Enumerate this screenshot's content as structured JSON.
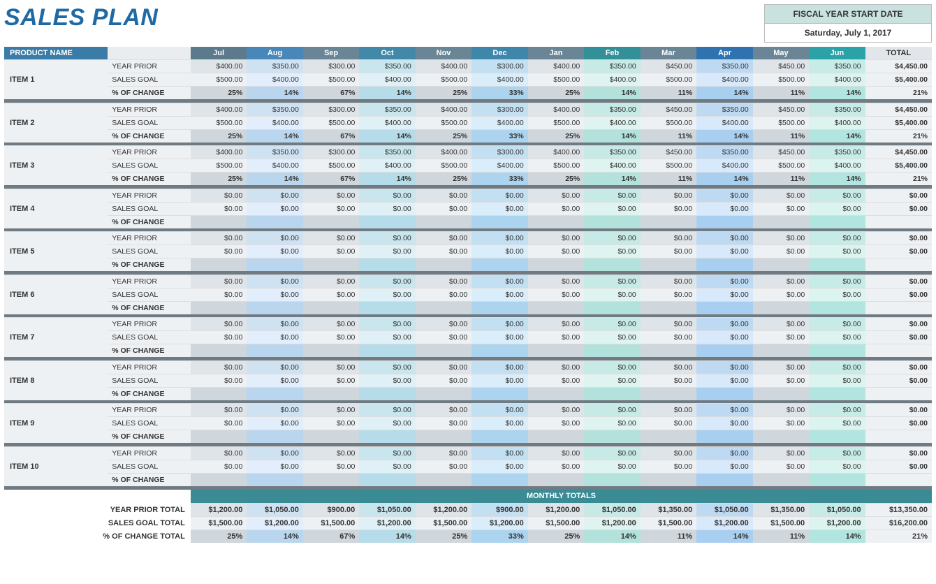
{
  "title": "SALES PLAN",
  "fiscal": {
    "label": "FISCAL YEAR START DATE",
    "date": "Saturday, July 1, 2017"
  },
  "headers": {
    "product": "PRODUCT NAME",
    "total": "TOTAL"
  },
  "months": [
    "Jul",
    "Aug",
    "Sep",
    "Oct",
    "Nov",
    "Dec",
    "Jan",
    "Feb",
    "Mar",
    "Apr",
    "May",
    "Jun"
  ],
  "month_header_colors": [
    "#5b7a8c",
    "#4a87b9",
    "#6a8696",
    "#4288a8",
    "#6a8696",
    "#3f86ab",
    "#6a8696",
    "#338f98",
    "#6a8696",
    "#2f72b0",
    "#6a8696",
    "#2ba2a8"
  ],
  "row_labels": {
    "prior": "YEAR PRIOR",
    "goal": "SALES GOAL",
    "pct": "% OF CHANGE"
  },
  "row_tints": {
    "prior": [
      "#dfe4e9",
      "#cfe2f2",
      "#dfe4e9",
      "#c9e6ee",
      "#dfe4e9",
      "#c3dff2",
      "#dfe4e9",
      "#c7eae6",
      "#dfe4e9",
      "#bedaf3",
      "#dfe4e9",
      "#c7ece8"
    ],
    "goal": [
      "#eef1f4",
      "#e2eefb",
      "#eef1f4",
      "#dff1f6",
      "#eef1f4",
      "#daedfa",
      "#eef1f4",
      "#dff4f1",
      "#eef1f4",
      "#d7e9fa",
      "#eef1f4",
      "#dcf4f0"
    ],
    "pct": [
      "#cfd6dc",
      "#bad6ee",
      "#cfd6dc",
      "#b5dce8",
      "#cfd6dc",
      "#acd4ee",
      "#cfd6dc",
      "#b3e2dc",
      "#cfd6dc",
      "#a9cff0",
      "#cfd6dc",
      "#b2e5df"
    ]
  },
  "items": [
    {
      "name": "ITEM 1",
      "prior": [
        "$400.00",
        "$350.00",
        "$300.00",
        "$350.00",
        "$400.00",
        "$300.00",
        "$400.00",
        "$350.00",
        "$450.00",
        "$350.00",
        "$450.00",
        "$350.00"
      ],
      "goal": [
        "$500.00",
        "$400.00",
        "$500.00",
        "$400.00",
        "$500.00",
        "$400.00",
        "$500.00",
        "$400.00",
        "$500.00",
        "$400.00",
        "$500.00",
        "$400.00"
      ],
      "pct": [
        "25%",
        "14%",
        "67%",
        "14%",
        "25%",
        "33%",
        "25%",
        "14%",
        "11%",
        "14%",
        "11%",
        "14%"
      ],
      "prior_total": "$4,450.00",
      "goal_total": "$5,400.00",
      "pct_total": "21%"
    },
    {
      "name": "ITEM 2",
      "prior": [
        "$400.00",
        "$350.00",
        "$300.00",
        "$350.00",
        "$400.00",
        "$300.00",
        "$400.00",
        "$350.00",
        "$450.00",
        "$350.00",
        "$450.00",
        "$350.00"
      ],
      "goal": [
        "$500.00",
        "$400.00",
        "$500.00",
        "$400.00",
        "$500.00",
        "$400.00",
        "$500.00",
        "$400.00",
        "$500.00",
        "$400.00",
        "$500.00",
        "$400.00"
      ],
      "pct": [
        "25%",
        "14%",
        "67%",
        "14%",
        "25%",
        "33%",
        "25%",
        "14%",
        "11%",
        "14%",
        "11%",
        "14%"
      ],
      "prior_total": "$4,450.00",
      "goal_total": "$5,400.00",
      "pct_total": "21%"
    },
    {
      "name": "ITEM 3",
      "prior": [
        "$400.00",
        "$350.00",
        "$300.00",
        "$350.00",
        "$400.00",
        "$300.00",
        "$400.00",
        "$350.00",
        "$450.00",
        "$350.00",
        "$450.00",
        "$350.00"
      ],
      "goal": [
        "$500.00",
        "$400.00",
        "$500.00",
        "$400.00",
        "$500.00",
        "$400.00",
        "$500.00",
        "$400.00",
        "$500.00",
        "$400.00",
        "$500.00",
        "$400.00"
      ],
      "pct": [
        "25%",
        "14%",
        "67%",
        "14%",
        "25%",
        "33%",
        "25%",
        "14%",
        "11%",
        "14%",
        "11%",
        "14%"
      ],
      "prior_total": "$4,450.00",
      "goal_total": "$5,400.00",
      "pct_total": "21%"
    },
    {
      "name": "ITEM 4",
      "prior": [
        "$0.00",
        "$0.00",
        "$0.00",
        "$0.00",
        "$0.00",
        "$0.00",
        "$0.00",
        "$0.00",
        "$0.00",
        "$0.00",
        "$0.00",
        "$0.00"
      ],
      "goal": [
        "$0.00",
        "$0.00",
        "$0.00",
        "$0.00",
        "$0.00",
        "$0.00",
        "$0.00",
        "$0.00",
        "$0.00",
        "$0.00",
        "$0.00",
        "$0.00"
      ],
      "pct": [
        "",
        "",
        "",
        "",
        "",
        "",
        "",
        "",
        "",
        "",
        "",
        ""
      ],
      "prior_total": "$0.00",
      "goal_total": "$0.00",
      "pct_total": ""
    },
    {
      "name": "ITEM 5",
      "prior": [
        "$0.00",
        "$0.00",
        "$0.00",
        "$0.00",
        "$0.00",
        "$0.00",
        "$0.00",
        "$0.00",
        "$0.00",
        "$0.00",
        "$0.00",
        "$0.00"
      ],
      "goal": [
        "$0.00",
        "$0.00",
        "$0.00",
        "$0.00",
        "$0.00",
        "$0.00",
        "$0.00",
        "$0.00",
        "$0.00",
        "$0.00",
        "$0.00",
        "$0.00"
      ],
      "pct": [
        "",
        "",
        "",
        "",
        "",
        "",
        "",
        "",
        "",
        "",
        "",
        ""
      ],
      "prior_total": "$0.00",
      "goal_total": "$0.00",
      "pct_total": ""
    },
    {
      "name": "ITEM 6",
      "prior": [
        "$0.00",
        "$0.00",
        "$0.00",
        "$0.00",
        "$0.00",
        "$0.00",
        "$0.00",
        "$0.00",
        "$0.00",
        "$0.00",
        "$0.00",
        "$0.00"
      ],
      "goal": [
        "$0.00",
        "$0.00",
        "$0.00",
        "$0.00",
        "$0.00",
        "$0.00",
        "$0.00",
        "$0.00",
        "$0.00",
        "$0.00",
        "$0.00",
        "$0.00"
      ],
      "pct": [
        "",
        "",
        "",
        "",
        "",
        "",
        "",
        "",
        "",
        "",
        "",
        ""
      ],
      "prior_total": "$0.00",
      "goal_total": "$0.00",
      "pct_total": ""
    },
    {
      "name": "ITEM 7",
      "prior": [
        "$0.00",
        "$0.00",
        "$0.00",
        "$0.00",
        "$0.00",
        "$0.00",
        "$0.00",
        "$0.00",
        "$0.00",
        "$0.00",
        "$0.00",
        "$0.00"
      ],
      "goal": [
        "$0.00",
        "$0.00",
        "$0.00",
        "$0.00",
        "$0.00",
        "$0.00",
        "$0.00",
        "$0.00",
        "$0.00",
        "$0.00",
        "$0.00",
        "$0.00"
      ],
      "pct": [
        "",
        "",
        "",
        "",
        "",
        "",
        "",
        "",
        "",
        "",
        "",
        ""
      ],
      "prior_total": "$0.00",
      "goal_total": "$0.00",
      "pct_total": ""
    },
    {
      "name": "ITEM 8",
      "prior": [
        "$0.00",
        "$0.00",
        "$0.00",
        "$0.00",
        "$0.00",
        "$0.00",
        "$0.00",
        "$0.00",
        "$0.00",
        "$0.00",
        "$0.00",
        "$0.00"
      ],
      "goal": [
        "$0.00",
        "$0.00",
        "$0.00",
        "$0.00",
        "$0.00",
        "$0.00",
        "$0.00",
        "$0.00",
        "$0.00",
        "$0.00",
        "$0.00",
        "$0.00"
      ],
      "pct": [
        "",
        "",
        "",
        "",
        "",
        "",
        "",
        "",
        "",
        "",
        "",
        ""
      ],
      "prior_total": "$0.00",
      "goal_total": "$0.00",
      "pct_total": ""
    },
    {
      "name": "ITEM 9",
      "prior": [
        "$0.00",
        "$0.00",
        "$0.00",
        "$0.00",
        "$0.00",
        "$0.00",
        "$0.00",
        "$0.00",
        "$0.00",
        "$0.00",
        "$0.00",
        "$0.00"
      ],
      "goal": [
        "$0.00",
        "$0.00",
        "$0.00",
        "$0.00",
        "$0.00",
        "$0.00",
        "$0.00",
        "$0.00",
        "$0.00",
        "$0.00",
        "$0.00",
        "$0.00"
      ],
      "pct": [
        "",
        "",
        "",
        "",
        "",
        "",
        "",
        "",
        "",
        "",
        "",
        ""
      ],
      "prior_total": "$0.00",
      "goal_total": "$0.00",
      "pct_total": ""
    },
    {
      "name": "ITEM 10",
      "prior": [
        "$0.00",
        "$0.00",
        "$0.00",
        "$0.00",
        "$0.00",
        "$0.00",
        "$0.00",
        "$0.00",
        "$0.00",
        "$0.00",
        "$0.00",
        "$0.00"
      ],
      "goal": [
        "$0.00",
        "$0.00",
        "$0.00",
        "$0.00",
        "$0.00",
        "$0.00",
        "$0.00",
        "$0.00",
        "$0.00",
        "$0.00",
        "$0.00",
        "$0.00"
      ],
      "pct": [
        "",
        "",
        "",
        "",
        "",
        "",
        "",
        "",
        "",
        "",
        "",
        ""
      ],
      "prior_total": "$0.00",
      "goal_total": "$0.00",
      "pct_total": ""
    }
  ],
  "totals": {
    "title": "MONTHLY TOTALS",
    "labels": {
      "prior": "YEAR PRIOR TOTAL",
      "goal": "SALES GOAL TOTAL",
      "pct": "% OF CHANGE TOTAL"
    },
    "prior": [
      "$1,200.00",
      "$1,050.00",
      "$900.00",
      "$1,050.00",
      "$1,200.00",
      "$900.00",
      "$1,200.00",
      "$1,050.00",
      "$1,350.00",
      "$1,050.00",
      "$1,350.00",
      "$1,050.00"
    ],
    "goal": [
      "$1,500.00",
      "$1,200.00",
      "$1,500.00",
      "$1,200.00",
      "$1,500.00",
      "$1,200.00",
      "$1,500.00",
      "$1,200.00",
      "$1,500.00",
      "$1,200.00",
      "$1,500.00",
      "$1,200.00"
    ],
    "pct": [
      "25%",
      "14%",
      "67%",
      "14%",
      "25%",
      "33%",
      "25%",
      "14%",
      "11%",
      "14%",
      "11%",
      "14%"
    ],
    "prior_total": "$13,350.00",
    "goal_total": "$16,200.00",
    "pct_total": "21%"
  }
}
